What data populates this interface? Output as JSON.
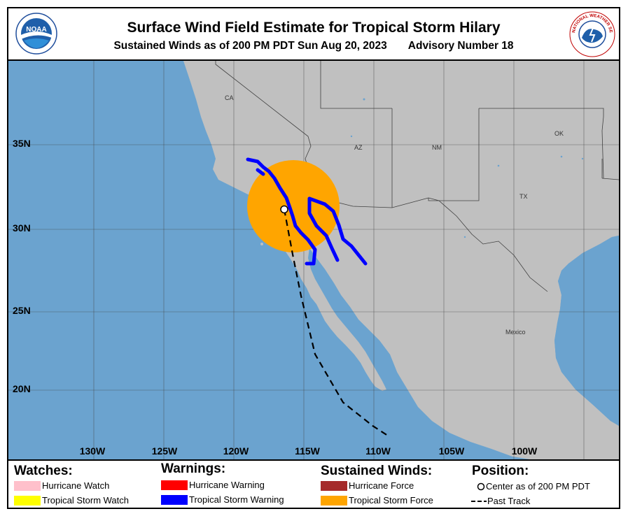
{
  "header": {
    "title": "Surface Wind Field Estimate for Tropical Storm Hilary",
    "subtitle_time": "Sustained Winds as of 200 PM PDT Sun Aug 20, 2023",
    "subtitle_advisory": "Advisory Number 18",
    "noaa_logo_text": "NOAA",
    "nws_logo_text": "NATIONAL WEATHER SERVICE"
  },
  "map": {
    "colors": {
      "ocean": "#6ba3cf",
      "land": "#c0c0c0",
      "border": "#404040",
      "grid": "#404040"
    },
    "lat_labels": [
      "35N",
      "30N",
      "25N",
      "20N"
    ],
    "lon_labels": [
      "130W",
      "125W",
      "120W",
      "115W",
      "110W",
      "105W",
      "100W"
    ],
    "region_labels": [
      "CA",
      "AZ",
      "NM",
      "OK",
      "TX",
      "Mexico"
    ],
    "storm": {
      "center_lat": 31.2,
      "center_lon": -116.4,
      "tropical_storm_force_color": "#ffa500",
      "warning_color": "#0000ff",
      "past_track": [
        [
          -116.4,
          31.2
        ],
        [
          -115.8,
          28.5
        ],
        [
          -115.2,
          26.0
        ],
        [
          -114.2,
          22.5
        ],
        [
          -112.2,
          19.6
        ],
        [
          -110.1,
          18.2
        ],
        [
          -109.0,
          17.6
        ]
      ]
    }
  },
  "legend": {
    "watches": {
      "heading": "Watches:",
      "items": [
        {
          "label": "Hurricane Watch",
          "color": "#ffc0cb"
        },
        {
          "label": "Tropical Storm Watch",
          "color": "#ffff00"
        }
      ]
    },
    "warnings": {
      "heading": "Warnings:",
      "items": [
        {
          "label": "Hurricane Warning",
          "color": "#ff0000"
        },
        {
          "label": "Tropical Storm Warning",
          "color": "#0000ff"
        }
      ]
    },
    "winds": {
      "heading": "Sustained Winds:",
      "items": [
        {
          "label": "Hurricane Force",
          "color": "#a52a2a"
        },
        {
          "label": "Tropical Storm Force",
          "color": "#ffa500"
        }
      ]
    },
    "position": {
      "heading": "Position:",
      "center_label": "Center as of 200 PM PDT",
      "track_label": "Past Track"
    }
  }
}
